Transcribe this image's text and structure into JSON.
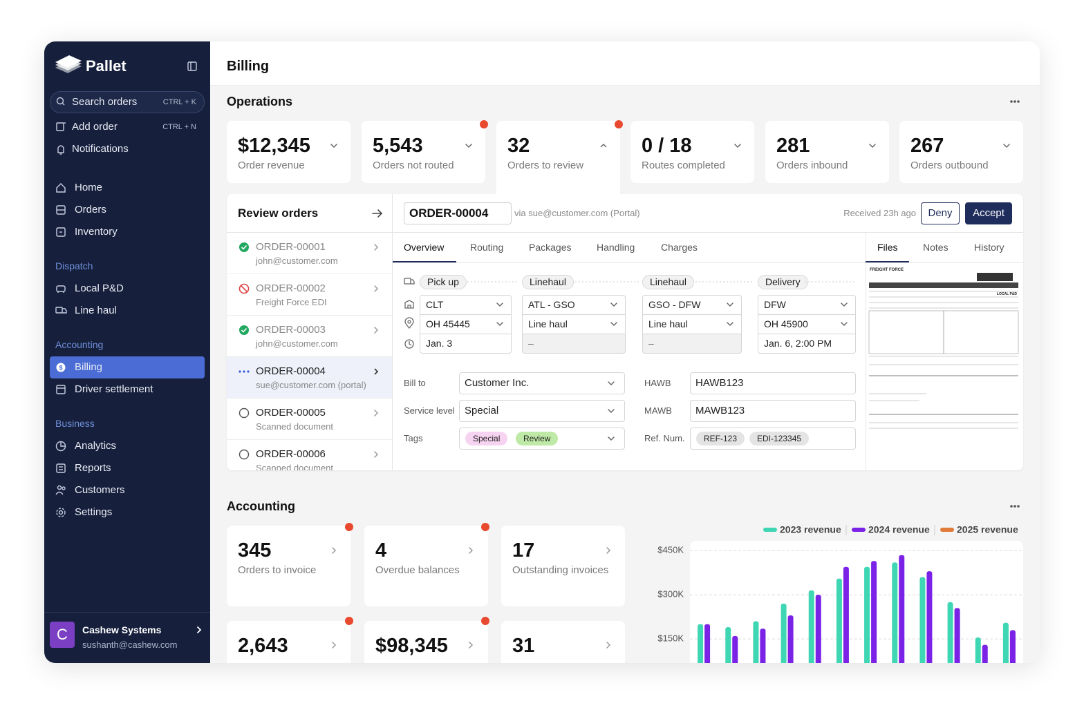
{
  "sidebar": {
    "brand": "Pallet",
    "search": {
      "label": "Search orders",
      "shortcut": "CTRL + K"
    },
    "actions": [
      {
        "label": "Add order",
        "shortcut": "CTRL + N"
      },
      {
        "label": "Notifications"
      }
    ],
    "groups": [
      {
        "items": [
          "Home",
          "Orders",
          "Inventory"
        ]
      },
      {
        "title": "Dispatch",
        "items": [
          "Local P&D",
          "Line haul"
        ]
      },
      {
        "title": "Accounting",
        "items": [
          "Billing",
          "Driver settlement"
        ]
      },
      {
        "title": "Business",
        "items": [
          "Analytics",
          "Reports",
          "Customers",
          "Settings"
        ]
      }
    ],
    "account": {
      "initial": "C",
      "name": "Cashew Systems",
      "email": "sushanth@cashew.com"
    }
  },
  "header": {
    "title": "Billing"
  },
  "operations": {
    "title": "Operations",
    "stats": [
      {
        "value": "$12,345",
        "label": "Order revenue"
      },
      {
        "value": "5,543",
        "label": "Orders not routed"
      },
      {
        "value": "32",
        "label": "Orders to review"
      },
      {
        "value": "0 / 18",
        "label": "Routes completed"
      },
      {
        "value": "281",
        "label": "Orders inbound"
      },
      {
        "value": "267",
        "label": "Orders outbound"
      }
    ]
  },
  "review": {
    "title": "Review orders",
    "orders": [
      {
        "id": "ORDER-00001",
        "source": "john@customer.com"
      },
      {
        "id": "ORDER-00002",
        "source": "Freight Force EDI"
      },
      {
        "id": "ORDER-00003",
        "source": "john@customer.com"
      },
      {
        "id": "ORDER-00004",
        "source": "sue@customer.com (portal)"
      },
      {
        "id": "ORDER-00005",
        "source": "Scanned document"
      },
      {
        "id": "ORDER-00006",
        "source": "Scanned document"
      }
    ],
    "detail": {
      "order": "ORDER-00004",
      "via": "via sue@customer.com (Portal)",
      "received": "Received 23h ago",
      "deny": "Deny",
      "accept": "Accept",
      "tabs": [
        "Overview",
        "Routing",
        "Packages",
        "Handling",
        "Charges"
      ],
      "side_tabs": [
        "Files",
        "Notes",
        "History"
      ],
      "stops": [
        {
          "type": "Pick up",
          "fields": [
            "CLT",
            "OH 45445",
            "Jan. 3"
          ]
        },
        {
          "type": "Linehaul",
          "fields": [
            "ATL - GSO",
            "Line haul",
            "–"
          ]
        },
        {
          "type": "Linehaul",
          "fields": [
            "GSO - DFW",
            "Line haul",
            "–"
          ]
        },
        {
          "type": "Delivery",
          "fields": [
            "DFW",
            "OH 45900",
            "Jan. 6, 2:00 PM"
          ]
        }
      ],
      "form": [
        {
          "label": "Bill to",
          "value": "Customer Inc."
        },
        {
          "label": "Service level",
          "value": "Special"
        },
        {
          "label": "Tags",
          "tags": [
            "Special",
            "Review"
          ]
        },
        {
          "label": "HAWB",
          "value": "HAWB123"
        },
        {
          "label": "MAWB",
          "value": "MAWB123"
        },
        {
          "label": "Ref. Num.",
          "tags": [
            "REF-123",
            "EDI-123345"
          ]
        }
      ],
      "document": {
        "company": "FREIGHT FORCE",
        "service": "LOCAL P&D"
      }
    }
  },
  "accounting": {
    "title": "Accounting",
    "cards": [
      {
        "value": "345",
        "label": "Orders to invoice"
      },
      {
        "value": "4",
        "label": "Overdue balances"
      },
      {
        "value": "17",
        "label": "Outstanding invoices"
      },
      {
        "value": "2,643"
      },
      {
        "value": "$98,345"
      },
      {
        "value": "31"
      }
    ]
  },
  "chart_data": {
    "type": "bar",
    "categories": [
      null,
      null,
      null,
      null,
      null,
      null,
      null,
      null,
      null,
      null,
      null,
      null
    ],
    "series": [
      {
        "name": "2023 revenue",
        "color": "#3fd6b4",
        "values": [
          200000,
          190000,
          210000,
          270000,
          315000,
          355000,
          395000,
          410000,
          360000,
          275000,
          155000,
          205000
        ]
      },
      {
        "name": "2024 revenue",
        "color": "#7a22e6",
        "values": [
          200000,
          160000,
          185000,
          230000,
          300000,
          395000,
          415000,
          435000,
          380000,
          255000,
          130000,
          180000
        ]
      },
      {
        "name": "2025 revenue",
        "color": "#e07b39",
        "values": [
          null,
          null,
          null,
          null,
          null,
          null,
          null,
          null,
          null,
          null,
          null,
          null
        ]
      }
    ],
    "ylim": [
      0,
      500000
    ],
    "yticks": [
      {
        "value": 150000,
        "label": "$150K"
      },
      {
        "value": 300000,
        "label": "$300K"
      },
      {
        "value": 450000,
        "label": "$450K"
      }
    ],
    "grid": true
  }
}
